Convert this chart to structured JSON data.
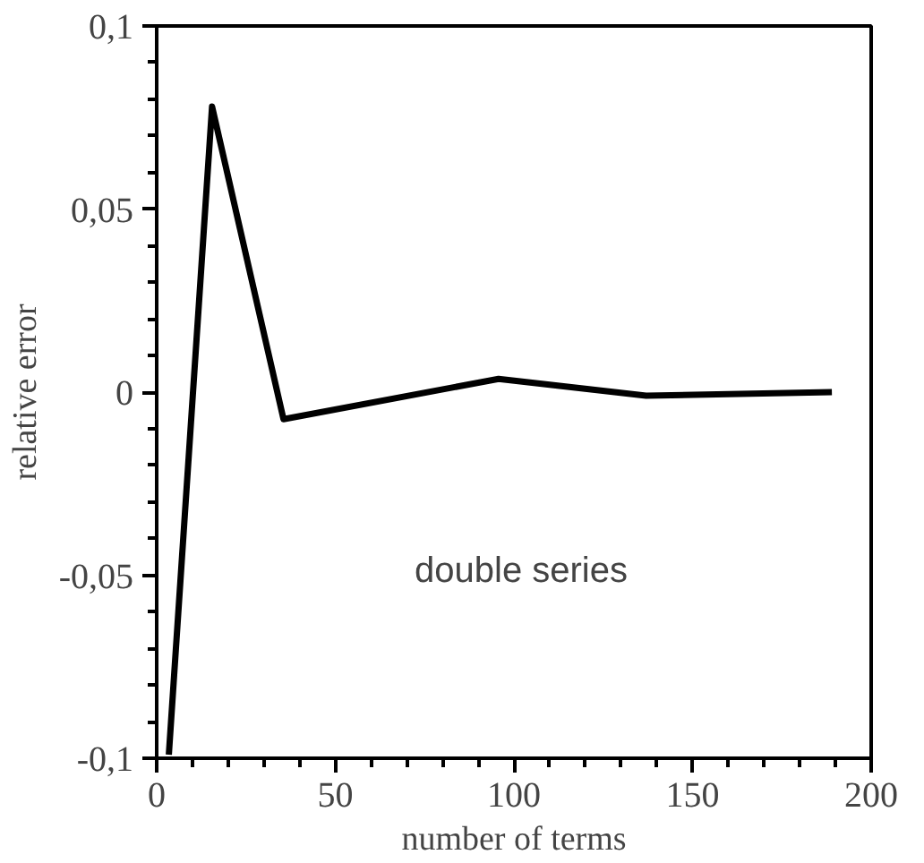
{
  "chart_data": {
    "type": "line",
    "xlabel": "number of terms",
    "ylabel": "relative error",
    "x": [
      3.4,
      15.5,
      35.5,
      95.7,
      137,
      189
    ],
    "series": [
      {
        "color": "#000000",
        "values": [
          -0.099,
          0.078,
          -0.0074,
          0.0036,
          -0.001,
          0.0
        ]
      }
    ],
    "xlim": [
      0,
      200
    ],
    "ylim": [
      -0.1,
      0.1
    ],
    "xticks": [
      0,
      50,
      100,
      150,
      200
    ],
    "yticks": [
      {
        "value": -0.1,
        "label": "-0,1"
      },
      {
        "value": -0.05,
        "label": "-0,05"
      },
      {
        "value": 0,
        "label": "0"
      },
      {
        "value": 0.05,
        "label": "0,05"
      },
      {
        "value": 0.1,
        "label": "0,1"
      }
    ],
    "annotations": [
      "double series"
    ],
    "line_style": "solid"
  }
}
